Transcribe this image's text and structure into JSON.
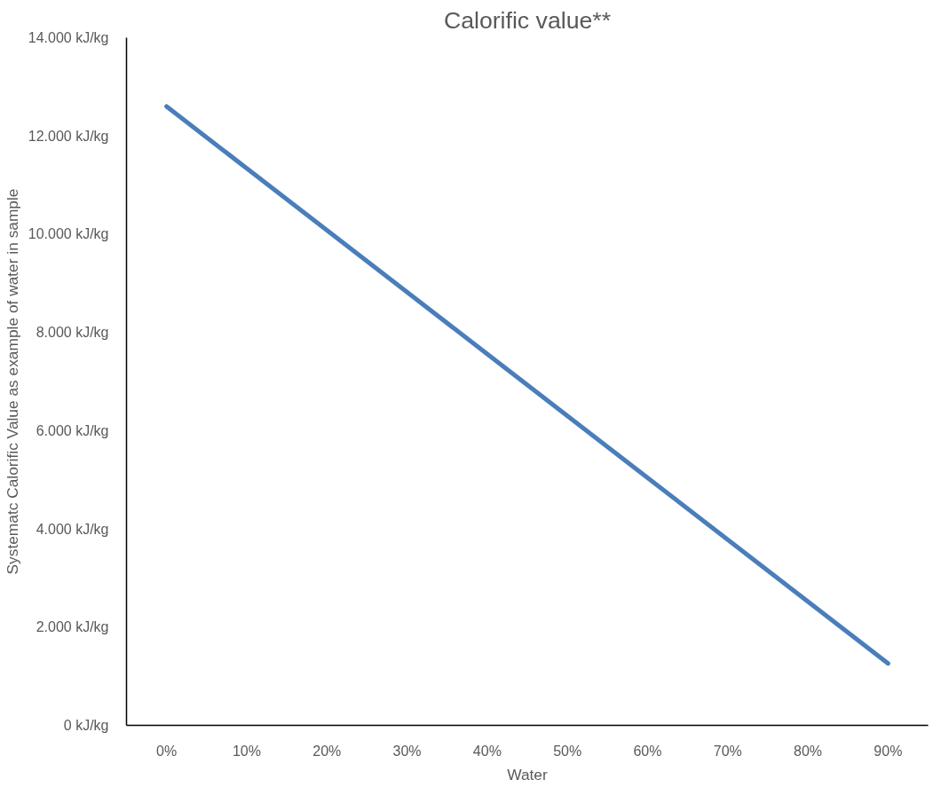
{
  "chart_data": {
    "type": "line",
    "title": "Calorific value**",
    "xlabel": "Water",
    "ylabel": "Systematc Calorific Value as example of water in sample",
    "categories": [
      "0%",
      "10%",
      "20%",
      "30%",
      "40%",
      "50%",
      "60%",
      "70%",
      "80%",
      "90%"
    ],
    "series": [
      {
        "color": "#4a7ebb",
        "values": [
          12600,
          11340,
          10080,
          8820,
          7560,
          6300,
          5040,
          3780,
          2520,
          1260
        ]
      }
    ],
    "ylim": [
      0,
      14000
    ],
    "yticks": [
      {
        "value": 0,
        "label": "0 kJ/kg"
      },
      {
        "value": 2000,
        "label": "2.000 kJ/kg"
      },
      {
        "value": 4000,
        "label": "4.000 kJ/kg"
      },
      {
        "value": 6000,
        "label": "6.000 kJ/kg"
      },
      {
        "value": 8000,
        "label": "8.000 kJ/kg"
      },
      {
        "value": 10000,
        "label": "10.000 kJ/kg"
      },
      {
        "value": 12000,
        "label": "12.000 kJ/kg"
      },
      {
        "value": 14000,
        "label": "14.000 kJ/kg"
      }
    ],
    "grid": false,
    "marker": "none",
    "line_style": "solid"
  }
}
